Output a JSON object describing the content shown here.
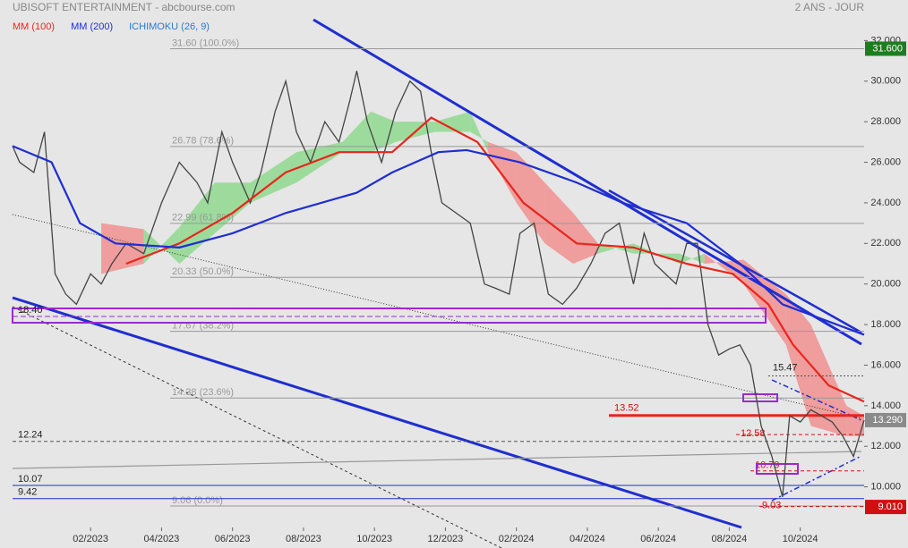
{
  "chart_data": {
    "type": "line",
    "title": "UBISOFT ENTERTAINMENT - abcbourse.com",
    "period": "2 ANS - JOUR",
    "xlim": [
      -1.2,
      22.8
    ],
    "xticks": [
      {
        "value": 1,
        "label": "02/2023"
      },
      {
        "value": 3,
        "label": "04/2023"
      },
      {
        "value": 5,
        "label": "06/2023"
      },
      {
        "value": 7,
        "label": "08/2023"
      },
      {
        "value": 9,
        "label": "10/2023"
      },
      {
        "value": 11,
        "label": "12/2023"
      },
      {
        "value": 13,
        "label": "02/2024"
      },
      {
        "value": 15,
        "label": "04/2024"
      },
      {
        "value": 17,
        "label": "06/2024"
      },
      {
        "value": 19,
        "label": "08/2024"
      },
      {
        "value": 21,
        "label": "10/2024"
      }
    ],
    "ylim": [
      8,
      34
    ],
    "yticks": [
      {
        "value": 10,
        "label": "10.000"
      },
      {
        "value": 12,
        "label": "12.000"
      },
      {
        "value": 14,
        "label": "14.000"
      },
      {
        "value": 16,
        "label": "16.000"
      },
      {
        "value": 18,
        "label": "18.000"
      },
      {
        "value": 20,
        "label": "20.000"
      },
      {
        "value": 22,
        "label": "22.000"
      },
      {
        "value": 24,
        "label": "24.000"
      },
      {
        "value": 26,
        "label": "26.000"
      },
      {
        "value": 28,
        "label": "28.000"
      },
      {
        "value": 30,
        "label": "30.000"
      },
      {
        "value": 32,
        "label": "32.000"
      }
    ],
    "price": {
      "color": "#444444",
      "x": [
        -1.2,
        -1.0,
        -0.6,
        -0.3,
        0,
        0.3,
        0.6,
        1.0,
        1.3,
        1.6,
        2.0,
        2.5,
        3.0,
        3.5,
        4.0,
        4.3,
        4.7,
        5.0,
        5.5,
        5.8,
        6.2,
        6.5,
        6.8,
        7.2,
        7.6,
        8.0,
        8.3,
        8.5,
        8.8,
        9.2,
        9.6,
        10.0,
        10.3,
        10.6,
        10.9,
        11.3,
        11.7,
        12.1,
        12.4,
        12.8,
        13.1,
        13.5,
        13.9,
        14.3,
        14.7,
        15.1,
        15.5,
        15.9,
        16.3,
        16.6,
        16.9,
        17.2,
        17.5,
        17.8,
        18.1,
        18.4,
        18.7,
        19.0,
        19.3,
        19.6,
        19.9,
        20.2,
        20.5,
        20.7,
        21.0,
        21.3,
        21.6,
        21.9,
        22.2,
        22.5,
        22.8
      ],
      "values": [
        26.8,
        26.0,
        25.5,
        27.5,
        20.5,
        19.5,
        19.0,
        20.5,
        20.0,
        21.0,
        22.0,
        21.5,
        24.0,
        26.0,
        25.0,
        24.0,
        27.5,
        26.0,
        24.0,
        25.5,
        28.5,
        30.0,
        27.5,
        26.0,
        28.0,
        27.0,
        29.0,
        30.5,
        28.0,
        26.0,
        28.5,
        30.0,
        29.5,
        26.5,
        24.0,
        23.5,
        23.0,
        20.0,
        19.8,
        19.5,
        22.5,
        23.0,
        19.5,
        19.0,
        19.8,
        21.0,
        22.5,
        23.0,
        20.0,
        22.5,
        21.0,
        20.5,
        20.0,
        22.0,
        22.0,
        18.0,
        16.5,
        16.8,
        17.0,
        16.0,
        13.0,
        11.5,
        9.5,
        13.5,
        13.2,
        13.8,
        13.5,
        13.2,
        12.5,
        11.5,
        13.29
      ]
    },
    "series": [
      {
        "name": "MM (100)",
        "color": "#e8261c",
        "x": [
          2.0,
          3.5,
          5.0,
          6.5,
          8.0,
          9.5,
          10.6,
          11.9,
          13.2,
          14.7,
          16.3,
          17.8,
          19.1,
          20.1,
          20.8,
          21.8,
          22.8
        ],
        "values": [
          21.0,
          22.0,
          23.5,
          25.5,
          26.5,
          26.5,
          28.2,
          27.0,
          24.0,
          22.0,
          21.8,
          21.0,
          20.5,
          19.0,
          17.0,
          15.0,
          14.2
        ]
      },
      {
        "name": "MM (200)",
        "color": "#1f2ed1",
        "x": [
          -1.2,
          -0.1,
          0.7,
          1.7,
          3.5,
          5.0,
          6.5,
          8.5,
          9.5,
          10.8,
          11.6,
          13.1,
          14.7,
          16.0,
          17.8,
          19.3,
          20.5,
          22.8
        ],
        "values": [
          26.8,
          26.0,
          23.0,
          22.0,
          21.8,
          22.5,
          23.5,
          24.5,
          25.5,
          26.5,
          26.6,
          26.0,
          25.0,
          24.0,
          23.0,
          21.0,
          19.0,
          17.5
        ]
      }
    ],
    "ichimoku": {
      "name": "ICHIMOKU (26, 9)",
      "color": "#2a7ad0",
      "up_color": "#8fd88f",
      "down_color": "#f08f8f",
      "x": [
        1.3,
        2.5,
        3.5,
        4.5,
        5.5,
        6.8,
        8.1,
        8.9,
        9.6,
        10.7,
        11.7,
        12.2,
        13.0,
        13.8,
        14.6,
        15.3,
        16.3,
        17.6,
        18.3,
        19.4,
        20.6,
        21.3,
        22.3,
        22.8
      ],
      "span_a": [
        20.5,
        21.0,
        22.8,
        25.0,
        25.0,
        26.5,
        27.0,
        28.5,
        28.0,
        28.0,
        28.5,
        26.5,
        24.0,
        22.0,
        21.0,
        21.5,
        22.0,
        21.0,
        21.5,
        20.0,
        17.0,
        13.0,
        12.5,
        12.5
      ],
      "span_b": [
        23.0,
        22.7,
        21.0,
        22.5,
        24.0,
        25.0,
        26.5,
        26.5,
        27.0,
        27.5,
        27.5,
        27.0,
        26.5,
        25.0,
        23.5,
        22.0,
        21.5,
        21.5,
        21.0,
        21.2,
        19.5,
        18.0,
        14.0,
        13.5
      ]
    },
    "fib_levels": [
      {
        "value": 31.6,
        "label": "31.60  (100.0%)"
      },
      {
        "value": 26.78,
        "label": "26.78  (78.6%)"
      },
      {
        "value": 22.99,
        "label": "22.99  (61.8%)"
      },
      {
        "value": 20.33,
        "label": "20.33  (50.0%)"
      },
      {
        "value": 17.67,
        "label": "17.67  (38.2%)"
      },
      {
        "value": 14.38,
        "label": "14.38  (23.6%)"
      },
      {
        "value": 9.06,
        "label": "9.06  (0.0%)"
      }
    ],
    "levels": [
      {
        "value": 18.4,
        "label": "18.40"
      },
      {
        "value": 12.24,
        "label": "12.24"
      },
      {
        "value": 10.07,
        "label": "10.07"
      },
      {
        "value": 9.42,
        "label": "9.42"
      },
      {
        "value": 13.52,
        "label": "13.52"
      },
      {
        "value": 15.47,
        "label": "15.47"
      },
      {
        "value": 12.58,
        "label": "12.58"
      },
      {
        "value": 10.79,
        "label": "10.79"
      },
      {
        "value": 9.03,
        "label": "9.03"
      }
    ],
    "price_tags": [
      {
        "value": 31.6,
        "label": "31.600",
        "color": "#1e7d1e"
      },
      {
        "value": 13.29,
        "label": "13.290",
        "color": "#8a8a8a"
      },
      {
        "value": 9.01,
        "label": "9.010",
        "color": "#d01010"
      }
    ]
  }
}
